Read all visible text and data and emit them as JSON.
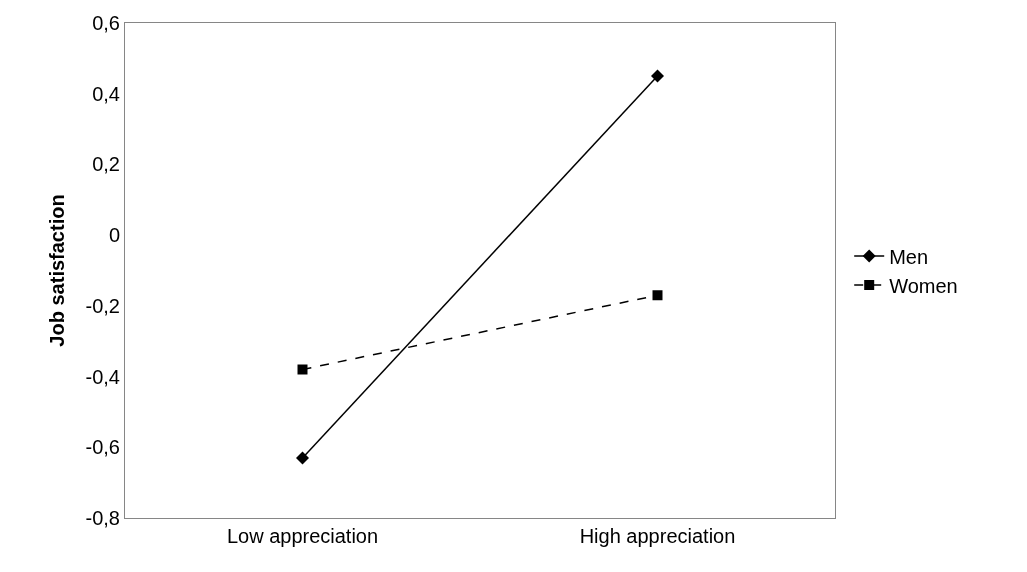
{
  "chart_data": {
    "type": "line",
    "ylabel": "Job satisfaction",
    "categories": [
      "Low appreciation",
      "High appreciation"
    ],
    "series": [
      {
        "name": "Men",
        "color": "#000000",
        "values": [
          -0.63,
          0.45
        ],
        "marker": "diamond",
        "line_style": "solid"
      },
      {
        "name": "Women",
        "color": "#000000",
        "values": [
          -0.38,
          -0.17
        ],
        "marker": "square",
        "line_style": "dashed"
      }
    ],
    "ylim": [
      -0.8,
      0.6
    ],
    "yticks": [
      {
        "value": -0.8,
        "label": "-0,8"
      },
      {
        "value": -0.6,
        "label": "-0,6"
      },
      {
        "value": -0.4,
        "label": "-0,4"
      },
      {
        "value": -0.2,
        "label": "-0,2"
      },
      0,
      {
        "value": 0.2,
        "label": "0,2"
      },
      {
        "value": 0.4,
        "label": "0,4"
      },
      {
        "value": 0.6,
        "label": "0,6"
      }
    ],
    "grid": false,
    "legend": "right"
  }
}
